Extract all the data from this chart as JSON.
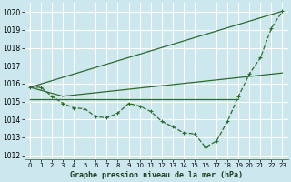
{
  "background_color": "#cce8ee",
  "grid_color": "#ffffff",
  "line_color": "#2d6a2d",
  "xlabel": "Graphe pression niveau de la mer (hPa)",
  "xlim": [
    -0.5,
    23.5
  ],
  "ylim": [
    1011.8,
    1020.5
  ],
  "yticks": [
    1012,
    1013,
    1014,
    1015,
    1016,
    1017,
    1018,
    1019,
    1020
  ],
  "xticks": [
    0,
    1,
    2,
    3,
    4,
    5,
    6,
    7,
    8,
    9,
    10,
    11,
    12,
    13,
    14,
    15,
    16,
    17,
    18,
    19,
    20,
    21,
    22,
    23
  ],
  "series": [
    {
      "x": [
        0,
        1,
        2,
        3,
        4,
        5,
        6,
        7,
        8,
        9,
        10,
        11,
        12,
        13,
        14,
        15,
        16,
        17,
        18,
        19,
        20,
        21,
        22,
        23
      ],
      "y": [
        1015.8,
        1015.8,
        1015.3,
        1014.9,
        1014.65,
        1014.6,
        1014.15,
        1014.1,
        1014.35,
        1014.9,
        1014.75,
        1014.45,
        1013.9,
        1013.6,
        1013.25,
        1013.2,
        1012.45,
        1012.8,
        1013.9,
        1015.3,
        1016.55,
        1017.45,
        1019.1,
        1020.05
      ],
      "marker": "+",
      "markersize": 3.5,
      "linewidth": 0.9,
      "linestyle": "--"
    },
    {
      "x": [
        0,
        19
      ],
      "y": [
        1015.15,
        1015.15
      ],
      "marker": "",
      "markersize": 0,
      "linewidth": 0.9,
      "linestyle": "-"
    },
    {
      "x": [
        0,
        23
      ],
      "y": [
        1015.8,
        1020.05
      ],
      "marker": "",
      "markersize": 0,
      "linewidth": 0.9,
      "linestyle": "-"
    },
    {
      "x": [
        3,
        23
      ],
      "y": [
        1015.3,
        1016.6
      ],
      "marker": "",
      "markersize": 0,
      "linewidth": 0.9,
      "linestyle": "-"
    },
    {
      "x": [
        0,
        3
      ],
      "y": [
        1015.8,
        1015.3
      ],
      "marker": "",
      "markersize": 0,
      "linewidth": 0.9,
      "linestyle": "-"
    }
  ]
}
